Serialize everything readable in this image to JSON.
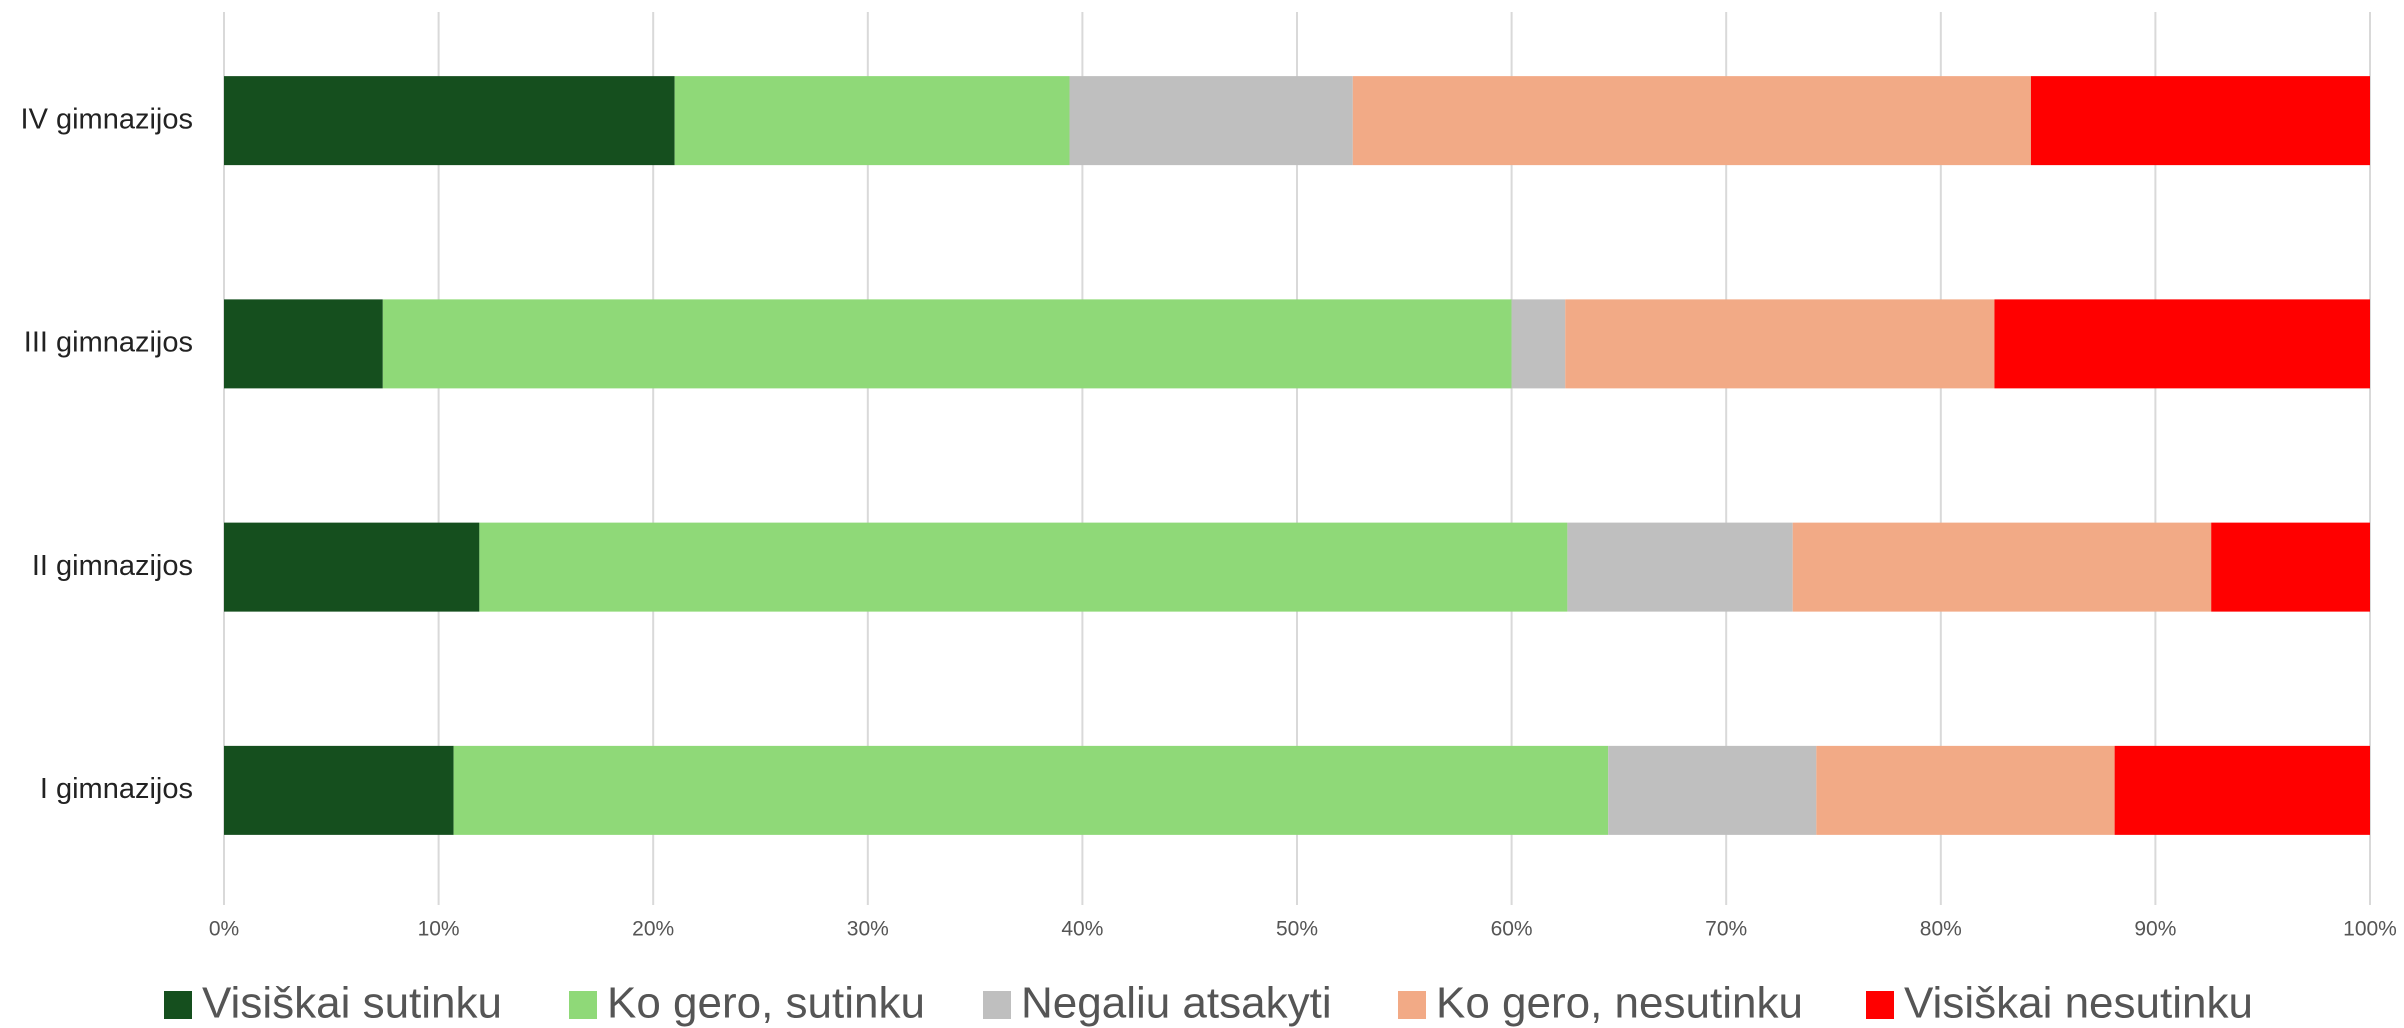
{
  "chart_data": {
    "type": "stacked_barh",
    "categories": [
      "IV gimnazijos",
      "III gimnazijos",
      "II gimnazijos",
      "I gimnazijos"
    ],
    "series": [
      {
        "name": "Visiškai sutinku",
        "color": "#154f1e",
        "values": [
          21.0,
          7.4,
          11.9,
          10.7
        ]
      },
      {
        "name": "Ko gero, sutinku",
        "color": "#8fd978",
        "values": [
          18.4,
          52.6,
          50.7,
          53.8
        ]
      },
      {
        "name": "Negaliu atsakyti",
        "color": "#bfbfbf",
        "values": [
          13.2,
          2.5,
          10.5,
          9.7
        ]
      },
      {
        "name": "Ko gero, nesutinku",
        "color": "#f2aa86",
        "values": [
          31.6,
          20.0,
          19.5,
          13.9
        ]
      },
      {
        "name": "Visiškai nesutinku",
        "color": "#ff0000",
        "values": [
          15.8,
          17.5,
          7.4,
          11.9
        ]
      }
    ],
    "xlim": [
      0,
      100
    ],
    "xticks": [
      {
        "value": 0,
        "label": "0%"
      },
      {
        "value": 10,
        "label": "10%"
      },
      {
        "value": 20,
        "label": "20%"
      },
      {
        "value": 30,
        "label": "30%"
      },
      {
        "value": 40,
        "label": "40%"
      },
      {
        "value": 50,
        "label": "50%"
      },
      {
        "value": 60,
        "label": "60%"
      },
      {
        "value": 70,
        "label": "70%"
      },
      {
        "value": 80,
        "label": "80%"
      },
      {
        "value": 90,
        "label": "90%"
      },
      {
        "value": 100,
        "label": "100%"
      }
    ],
    "grid": true,
    "legend": "bottom"
  }
}
